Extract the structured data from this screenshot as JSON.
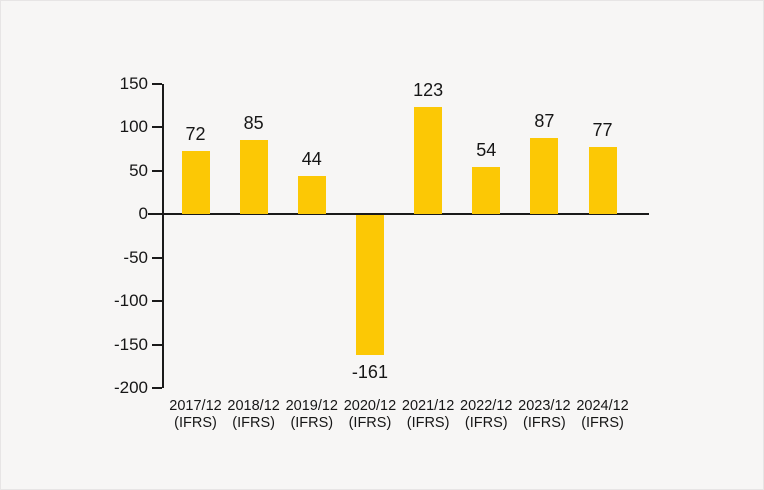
{
  "chart_data": {
    "type": "bar",
    "categories": [
      "2017/12",
      "2018/12",
      "2019/12",
      "2020/12",
      "2021/12",
      "2022/12",
      "2023/12",
      "2024/12"
    ],
    "category_note": "(IFRS)",
    "values": [
      72,
      85,
      44,
      -161,
      123,
      54,
      87,
      77
    ],
    "y_ticks": [
      150,
      100,
      50,
      0,
      -50,
      -100,
      -150,
      -200
    ],
    "ylim": [
      -200,
      150
    ],
    "title": "",
    "xlabel": "",
    "ylabel": "",
    "grid": false,
    "legend": false,
    "bar_color": "#FCC805",
    "axis_color": "#1a1a1a",
    "text_color": "#161616",
    "background_color": "#f7f6f5"
  }
}
